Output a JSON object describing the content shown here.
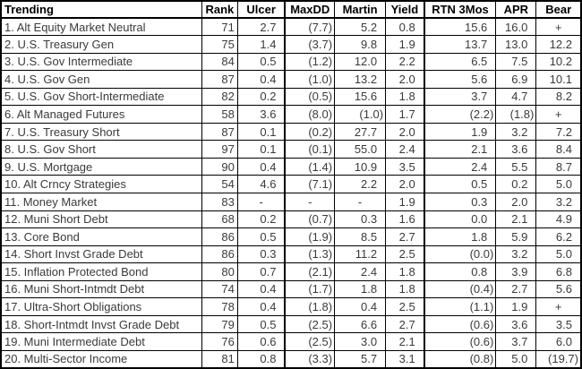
{
  "colors": {
    "background": "#ffffff",
    "grid_border": "#000000",
    "header_text": "#000000",
    "data_text": "#3a3a3a"
  },
  "table": {
    "columns": [
      {
        "label": "Trending"
      },
      {
        "label": "Rank"
      },
      {
        "label": "Ulcer"
      },
      {
        "label": "MaxDD"
      },
      {
        "label": "Martin"
      },
      {
        "label": "Yield"
      },
      {
        "label": "RTN 3Mos"
      },
      {
        "label": "APR"
      },
      {
        "label": "Bear"
      }
    ],
    "rows": [
      [
        "1. Alt Equity Market Neutral",
        "71",
        "2.7",
        "(7.7)",
        "5.2",
        "0.8",
        "15.6",
        "16.0",
        "+"
      ],
      [
        "2. U.S. Treasury Gen",
        "75",
        "1.4",
        "(3.7)",
        "9.8",
        "1.9",
        "13.7",
        "13.0",
        "12.2"
      ],
      [
        "3. U.S. Gov Intermediate",
        "84",
        "0.5",
        "(1.2)",
        "12.0",
        "2.2",
        "6.5",
        "7.5",
        "10.2"
      ],
      [
        "4. U.S. Gov Gen",
        "87",
        "0.4",
        "(1.0)",
        "13.2",
        "2.0",
        "5.6",
        "6.9",
        "10.1"
      ],
      [
        "5. U.S. Gov Short-Intermediate",
        "82",
        "0.2",
        "(0.5)",
        "15.6",
        "1.8",
        "3.7",
        "4.7",
        "8.2"
      ],
      [
        "6. Alt Managed Futures",
        "58",
        "3.6",
        "(8.0)",
        "(1.0)",
        "1.7",
        "(2.2)",
        "(1.8)",
        "+"
      ],
      [
        "7. U.S. Treasury Short",
        "87",
        "0.1",
        "(0.2)",
        "27.7",
        "2.0",
        "1.9",
        "3.2",
        "7.2"
      ],
      [
        "8. U.S. Gov Short",
        "97",
        "0.1",
        "(0.1)",
        "55.0",
        "2.4",
        "2.1",
        "3.6",
        "8.4"
      ],
      [
        "9. U.S. Mortgage",
        "90",
        "0.4",
        "(1.4)",
        "10.9",
        "3.5",
        "2.4",
        "5.5",
        "8.7"
      ],
      [
        "10. Alt Crncy Strategies",
        "54",
        "4.6",
        "(7.1)",
        "2.2",
        "2.0",
        "0.5",
        "0.2",
        "5.0"
      ],
      [
        "11. Money Market",
        "83",
        "-",
        "-",
        "-",
        "1.9",
        "0.3",
        "2.0",
        "3.2"
      ],
      [
        "12. Muni Short Debt",
        "68",
        "0.2",
        "(0.7)",
        "0.3",
        "1.6",
        "0.0",
        "2.1",
        "4.9"
      ],
      [
        "13. Core Bond",
        "86",
        "0.5",
        "(1.9)",
        "8.5",
        "2.7",
        "1.8",
        "5.9",
        "6.2"
      ],
      [
        "14. Short Invst Grade Debt",
        "86",
        "0.3",
        "(1.3)",
        "11.2",
        "2.5",
        "(0.0)",
        "3.2",
        "5.0"
      ],
      [
        "15. Inflation Protected Bond",
        "80",
        "0.7",
        "(2.1)",
        "2.4",
        "1.8",
        "0.8",
        "3.9",
        "6.8"
      ],
      [
        "16. Muni Short-Intmdt Debt",
        "74",
        "0.4",
        "(1.7)",
        "1.8",
        "1.8",
        "(0.4)",
        "2.7",
        "5.6"
      ],
      [
        "17. Ultra-Short Obligations",
        "78",
        "0.4",
        "(1.8)",
        "0.4",
        "2.5",
        "(1.1)",
        "1.9",
        "+"
      ],
      [
        "18. Short-Intmdt Invst Grade Debt",
        "79",
        "0.5",
        "(2.5)",
        "6.6",
        "2.7",
        "(0.6)",
        "3.6",
        "3.5"
      ],
      [
        "19. Muni Intermediate Debt",
        "76",
        "0.6",
        "(2.5)",
        "3.0",
        "2.1",
        "(0.6)",
        "3.7",
        "6.0"
      ],
      [
        "20. Multi-Sector Income",
        "81",
        "0.8",
        "(3.3)",
        "5.7",
        "3.1",
        "(0.8)",
        "5.0",
        "(19.7)"
      ]
    ]
  }
}
